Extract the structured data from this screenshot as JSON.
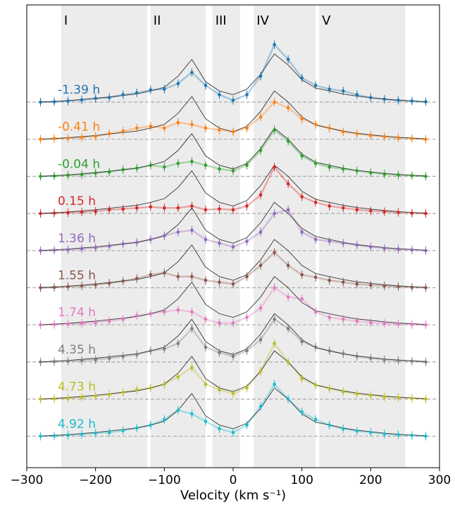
{
  "chart_data": {
    "type": "line",
    "x_label": "Velocity (km s⁻¹)",
    "xlim": [
      -300,
      300
    ],
    "xticks": [
      {
        "value": -300,
        "label": "−300"
      },
      {
        "value": -200,
        "label": "−200"
      },
      {
        "value": -100,
        "label": "−100"
      },
      0,
      100,
      200,
      300
    ],
    "regions": [
      {
        "label": "I",
        "range": [
          -250,
          -125
        ]
      },
      {
        "label": "II",
        "range": [
          -120,
          -40
        ]
      },
      {
        "label": "III",
        "range": [
          -30,
          10
        ]
      },
      {
        "label": "IV",
        "range": [
          30,
          120
        ]
      },
      {
        "label": "V",
        "range": [
          125,
          250
        ]
      }
    ],
    "x": [
      -280,
      -260,
      -240,
      -220,
      -200,
      -180,
      -160,
      -140,
      -120,
      -100,
      -80,
      -60,
      -40,
      -20,
      0,
      20,
      40,
      60,
      80,
      100,
      120,
      140,
      160,
      180,
      200,
      220,
      240,
      260,
      280
    ],
    "model": {
      "color": "#333333",
      "values": [
        0,
        0.02,
        0.04,
        0.07,
        0.1,
        0.14,
        0.18,
        0.22,
        0.3,
        0.4,
        0.7,
        1.15,
        0.55,
        0.3,
        0.2,
        0.35,
        0.75,
        1.3,
        1.0,
        0.6,
        0.38,
        0.3,
        0.22,
        0.16,
        0.12,
        0.08,
        0.05,
        0.03,
        0.01
      ]
    },
    "series": [
      {
        "name": "-1.39 h",
        "color": "#1f77b4",
        "values": [
          0,
          0.01,
          0.03,
          0.06,
          0.1,
          0.12,
          0.2,
          0.25,
          0.33,
          0.35,
          0.5,
          0.8,
          0.45,
          0.2,
          0.05,
          0.2,
          0.7,
          1.55,
          1.15,
          0.65,
          0.45,
          0.35,
          0.3,
          0.2,
          0.12,
          0.08,
          0.05,
          0.03,
          0.01
        ]
      },
      {
        "name": "-0.41 h",
        "color": "#ff7f0e",
        "values": [
          0,
          0.02,
          0.03,
          0.05,
          0.08,
          0.15,
          0.22,
          0.3,
          0.35,
          0.3,
          0.45,
          0.4,
          0.3,
          0.25,
          0.2,
          0.3,
          0.6,
          1.0,
          0.85,
          0.55,
          0.4,
          0.3,
          0.2,
          0.15,
          0.1,
          0.07,
          0.04,
          0.02,
          0
        ]
      },
      {
        "name": "-0.04 h",
        "color": "#2ca02c",
        "values": [
          0,
          0.01,
          0.03,
          0.05,
          0.09,
          0.12,
          0.18,
          0.22,
          0.3,
          0.25,
          0.35,
          0.4,
          0.3,
          0.2,
          0.15,
          0.3,
          0.7,
          1.25,
          0.95,
          0.55,
          0.35,
          0.25,
          0.2,
          0.15,
          0.1,
          0.06,
          0.04,
          0.02,
          0
        ]
      },
      {
        "name": "0.15 h",
        "color": "#d62728",
        "values": [
          0,
          0.01,
          0.02,
          0.04,
          0.06,
          0.1,
          0.12,
          0.15,
          0.18,
          0.15,
          0.15,
          0.2,
          0.1,
          0.12,
          0.1,
          0.2,
          0.5,
          1.25,
          0.8,
          0.45,
          0.3,
          0.2,
          0.15,
          0.1,
          0.07,
          0.05,
          0.03,
          0.01,
          0
        ]
      },
      {
        "name": "1.36 h",
        "color": "#9467bd",
        "values": [
          0,
          0.01,
          0.02,
          0.05,
          0.08,
          0.12,
          0.18,
          0.22,
          0.3,
          0.4,
          0.5,
          0.55,
          0.3,
          0.2,
          0.1,
          0.25,
          0.5,
          1.0,
          1.1,
          0.5,
          0.3,
          0.25,
          0.2,
          0.15,
          0.1,
          0.06,
          0.04,
          0.02,
          0
        ]
      },
      {
        "name": "1.55 h",
        "color": "#8c564b",
        "values": [
          0,
          0.01,
          0.03,
          0.05,
          0.08,
          0.12,
          0.18,
          0.25,
          0.35,
          0.4,
          0.3,
          0.3,
          0.2,
          0.15,
          0.1,
          0.3,
          0.6,
          0.95,
          0.6,
          0.35,
          0.28,
          0.2,
          0.15,
          0.1,
          0.07,
          0.05,
          0.03,
          0.01,
          0
        ]
      },
      {
        "name": "1.74 h",
        "color": "#e377c2",
        "values": [
          0,
          0.01,
          0.02,
          0.04,
          0.06,
          0.1,
          0.15,
          0.25,
          0.3,
          0.35,
          0.4,
          0.35,
          0.15,
          0.05,
          0.05,
          0.2,
          0.45,
          1.0,
          0.75,
          0.7,
          0.35,
          0.2,
          0.15,
          0.1,
          0.06,
          0.04,
          0.02,
          0.01,
          0
        ]
      },
      {
        "name": "4.35 h",
        "color": "#7f7f7f",
        "values": [
          0,
          0.01,
          0.02,
          0.04,
          0.06,
          0.1,
          0.15,
          0.2,
          0.3,
          0.35,
          0.5,
          0.9,
          0.4,
          0.25,
          0.15,
          0.3,
          0.6,
          1.15,
          0.9,
          0.55,
          0.4,
          0.3,
          0.22,
          0.15,
          0.1,
          0.06,
          0.04,
          0.02,
          0
        ]
      },
      {
        "name": "4.73 h",
        "color": "#bcbd22",
        "values": [
          0,
          0.01,
          0.02,
          0.05,
          0.08,
          0.12,
          0.18,
          0.25,
          0.3,
          0.4,
          0.6,
          0.85,
          0.4,
          0.25,
          0.15,
          0.3,
          0.75,
          1.5,
          1.0,
          0.55,
          0.38,
          0.28,
          0.2,
          0.14,
          0.1,
          0.06,
          0.04,
          0.02,
          0
        ]
      },
      {
        "name": "4.92 h",
        "color": "#17becf",
        "values": [
          0,
          0.01,
          0.03,
          0.05,
          0.08,
          0.1,
          0.15,
          0.22,
          0.3,
          0.45,
          0.7,
          0.6,
          0.4,
          0.2,
          0.1,
          0.3,
          0.8,
          1.4,
          1.0,
          0.65,
          0.45,
          0.3,
          0.2,
          0.14,
          0.1,
          0.06,
          0.04,
          0.02,
          0
        ]
      }
    ]
  }
}
